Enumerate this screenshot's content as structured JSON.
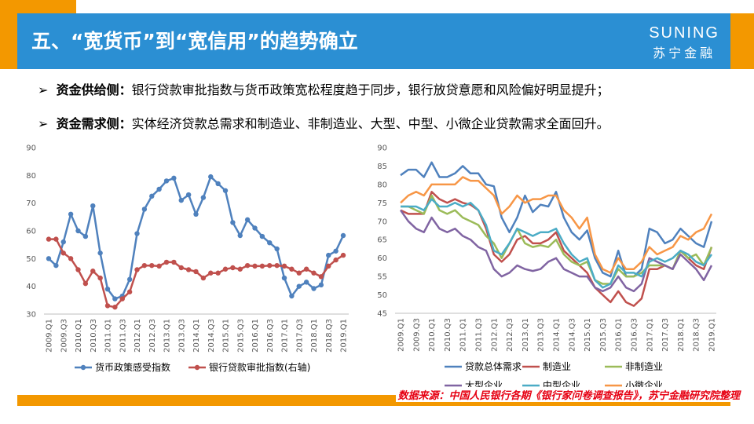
{
  "header": {
    "title": "五、“宽货币”到“宽信用”的趋势确立",
    "logo_main": "SUNING",
    "logo_sub": "苏宁金融"
  },
  "bullets": [
    {
      "marker": "➢",
      "label": "资金供给侧：",
      "text": "银行贷款审批指数与货币政策宽松程度趋于同步，银行放贷意愿和风险偏好明显提升；"
    },
    {
      "marker": "➢",
      "label": "资金需求侧：",
      "text": "实体经济贷款总需求和制造业、非制造业、大型、中型、小微企业贷款需求全面回升。"
    }
  ],
  "chart_data": [
    {
      "type": "line",
      "markers": true,
      "grid": false,
      "categories": [
        "2009.Q1",
        null,
        "2009.Q3",
        null,
        "2010.Q1",
        null,
        "2010.Q3",
        null,
        "2011.Q1",
        null,
        "2011.Q3",
        null,
        "2012.Q1",
        null,
        "2012.Q3",
        null,
        "2013.Q1",
        null,
        "2013.Q3",
        null,
        "2014.Q1",
        null,
        "2014.Q3",
        null,
        "2015.Q1",
        null,
        "2015.Q3",
        null,
        "2016.Q1",
        null,
        "2016.Q3",
        null,
        "2017.Q1",
        null,
        "2017.Q3",
        null,
        "2018.Q1",
        null,
        "2018.Q3",
        null,
        "2019.Q1"
      ],
      "ylim": [
        30,
        90
      ],
      "yticks": [
        30,
        40,
        50,
        60,
        70,
        80,
        90
      ],
      "series": [
        {
          "name": "货币政策感受指数",
          "color": "#4f81bd",
          "values": [
            50,
            47.5,
            56,
            66,
            60,
            58,
            69,
            52,
            39,
            35.5,
            36.5,
            42.5,
            59,
            67.8,
            72.5,
            75,
            78,
            79,
            71,
            73,
            66,
            72,
            79.5,
            77,
            74.5,
            63,
            58.3,
            64,
            61,
            58,
            55.7,
            53.5,
            43,
            36.5,
            40,
            41.5,
            39.2,
            40.5,
            51.2,
            52.7,
            58.3
          ]
        },
        {
          "name": "银行贷款审批指数(右轴)",
          "color": "#c0504d",
          "values": [
            57,
            57,
            52,
            50,
            46,
            41,
            45.5,
            43,
            33,
            32.5,
            35.5,
            38,
            46,
            47.5,
            47.5,
            47.3,
            48.7,
            48.7,
            46.7,
            46,
            45.3,
            43,
            44.8,
            44.8,
            46.2,
            46.7,
            46.2,
            47.5,
            47.3,
            47.3,
            47.5,
            47.5,
            47.3,
            46.2,
            44.8,
            46.2,
            44.8,
            43.5,
            47.3,
            49.5,
            51.2
          ]
        }
      ]
    },
    {
      "type": "line",
      "markers": false,
      "grid": false,
      "categories": [
        "2009.Q1",
        null,
        "2009.Q3",
        null,
        "2010.Q1",
        null,
        "2010.Q3",
        null,
        "2011.Q1",
        null,
        "2011.Q3",
        null,
        "2012.Q1",
        null,
        "2012.Q3",
        null,
        "2013.Q1",
        null,
        "2013.Q3",
        null,
        "2014.Q1",
        null,
        "2014.Q3",
        null,
        "2015.Q1",
        null,
        "2015.Q3",
        null,
        "2016.Q1",
        null,
        "2016.Q3",
        null,
        "2017.Q1",
        null,
        "2017.Q3",
        null,
        "2018.Q1",
        null,
        "2018.Q3",
        null,
        "2019.Q1"
      ],
      "ylim": [
        45,
        90
      ],
      "yticks": [
        45,
        50,
        55,
        60,
        65,
        70,
        75,
        80,
        85,
        90
      ],
      "series": [
        {
          "name": "贷款总体需求",
          "color": "#4f81bd",
          "values": [
            82.5,
            84,
            84,
            82,
            86,
            82,
            82,
            83,
            85,
            83,
            83,
            80,
            79.5,
            71,
            67,
            71,
            77,
            72.5,
            74.5,
            74,
            78,
            71,
            67,
            65,
            67.5,
            60,
            56,
            55,
            62,
            55,
            55,
            57,
            68,
            67,
            64,
            65,
            68,
            66,
            64,
            63,
            70
          ]
        },
        {
          "name": "制造业",
          "color": "#c0504d",
          "values": [
            73,
            72,
            72,
            72,
            78,
            76,
            75,
            76,
            75,
            74.5,
            73,
            68,
            61,
            59,
            61,
            65,
            66,
            64,
            64,
            65,
            67,
            62,
            60,
            58,
            56,
            52,
            50,
            48,
            51,
            48,
            47,
            49,
            57,
            57,
            58,
            57,
            62,
            60,
            58,
            57,
            63
          ]
        },
        {
          "name": "非制造业",
          "color": "#9bbb59",
          "values": [
            74,
            74,
            73,
            72,
            77,
            73,
            72,
            73,
            71,
            70,
            69,
            66,
            64,
            60,
            64,
            68,
            64,
            63,
            63.5,
            63,
            65,
            61,
            59,
            58,
            59,
            54,
            53,
            53,
            57,
            55,
            55,
            56,
            58,
            58,
            58,
            57,
            62,
            60,
            61,
            58,
            63
          ]
        },
        {
          "name": "大型企业",
          "color": "#8064a2",
          "values": [
            73,
            70,
            68,
            67,
            71,
            68,
            67,
            68,
            66,
            65,
            63,
            62,
            57,
            55,
            56,
            58,
            57,
            56.5,
            57,
            59,
            60,
            57,
            56,
            55,
            55,
            52,
            51,
            52,
            55,
            52,
            51,
            53,
            60,
            59,
            58,
            57,
            61,
            59,
            57,
            54,
            58
          ]
        },
        {
          "name": "中型企业",
          "color": "#4bacc6",
          "values": [
            74,
            74,
            74,
            73,
            76,
            74,
            74,
            75,
            74,
            75,
            73,
            69,
            62,
            61,
            64,
            68,
            67,
            66,
            67,
            67,
            68,
            64,
            61,
            59,
            60,
            54,
            52,
            53,
            58,
            56,
            56,
            55,
            59,
            60,
            59,
            60,
            62,
            61,
            59,
            58,
            61
          ]
        },
        {
          "name": "小微企业",
          "color": "#f79646",
          "values": [
            75,
            77,
            78,
            77,
            80,
            80,
            80,
            80,
            82,
            81,
            81,
            79,
            77,
            72,
            74,
            77,
            75,
            76,
            76,
            77,
            77,
            73,
            71,
            68,
            71,
            61,
            57,
            56,
            60,
            57,
            57,
            59,
            63,
            61,
            62,
            63,
            66,
            65,
            67,
            68,
            72
          ]
        }
      ]
    }
  ],
  "source": "数据来源：中国人民银行各期《银行家问卷调查报告》，苏宁金融研究院整理"
}
